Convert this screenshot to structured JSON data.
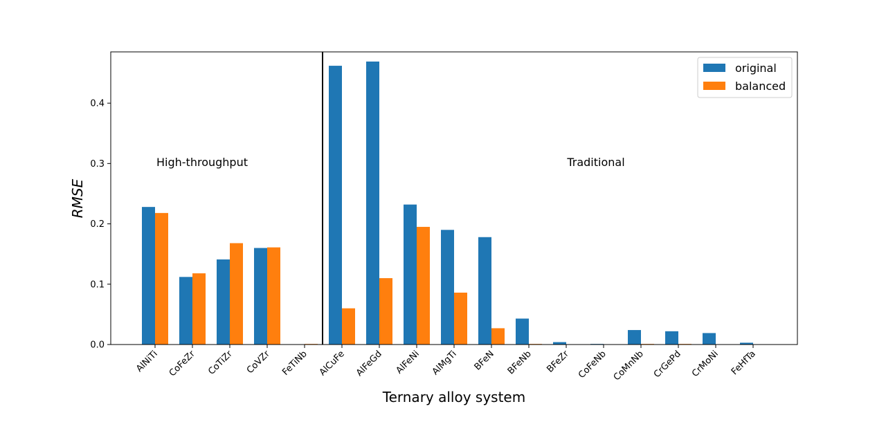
{
  "chart_data": {
    "type": "bar",
    "xlabel": "Ternary alloy system",
    "ylabel": "RMSE",
    "ylim": [
      0,
      0.485
    ],
    "yticks": [
      "0.0",
      "0.1",
      "0.2",
      "0.3",
      "0.4"
    ],
    "ytick_values": [
      0,
      0.1,
      0.2,
      0.3,
      0.4
    ],
    "grid": false,
    "legend_position": "top-right",
    "categories": [
      "AlNiTi",
      "CoFeZr",
      "CoTiZr",
      "CoVZr",
      "FeTiNb",
      "AlCuFe",
      "AlFeGd",
      "AlFeNi",
      "AlMgTi",
      "BFeN",
      "BFeNb",
      "BFeZr",
      "CoFeNb",
      "CoMnNb",
      "CrGePd",
      "CrMoNi",
      "FeHfTa"
    ],
    "series": [
      {
        "name": "original",
        "color": "#1f77b4",
        "values": [
          0.228,
          0.112,
          0.141,
          0.16,
          0.0,
          0.462,
          0.469,
          0.232,
          0.19,
          0.178,
          0.043,
          0.004,
          0.001,
          0.024,
          0.022,
          0.019,
          0.003
        ]
      },
      {
        "name": "balanced",
        "color": "#ff7f0e",
        "values": [
          0.218,
          0.118,
          0.168,
          0.161,
          0.001,
          0.06,
          0.11,
          0.195,
          0.086,
          0.027,
          0.001,
          0.0,
          0.0,
          0.001,
          0.001,
          0.0,
          0.0
        ]
      }
    ],
    "annotations": [
      "High-throughput",
      "Traditional"
    ],
    "divider_after_category": "FeTiNb"
  }
}
